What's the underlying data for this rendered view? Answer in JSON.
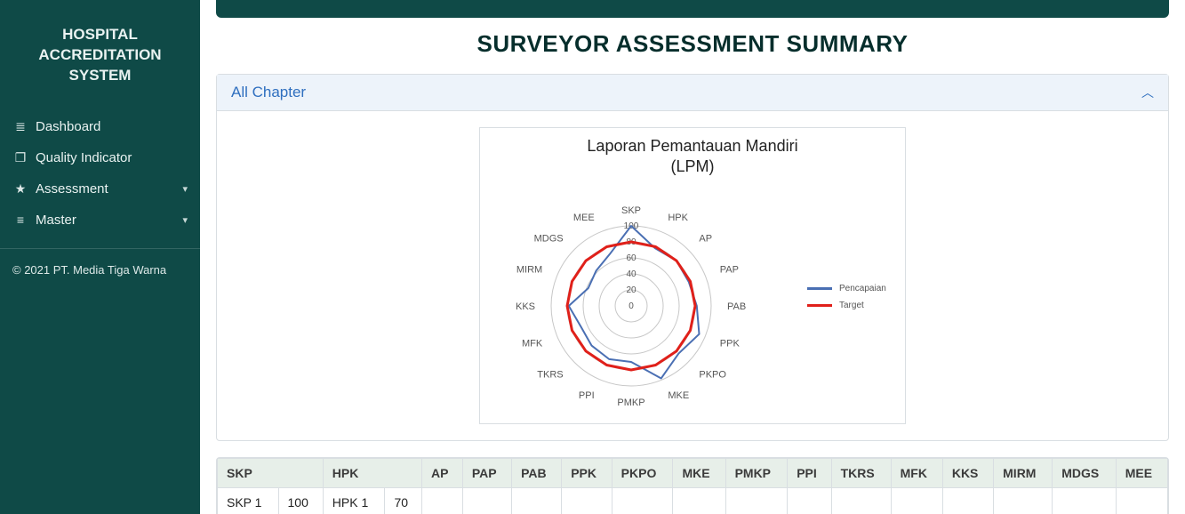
{
  "brand": {
    "line1": "HOSPITAL",
    "line2": "ACCREDITATION SYSTEM"
  },
  "sidebar": {
    "items": [
      {
        "icon": "≣",
        "label": "Dashboard",
        "has_caret": false
      },
      {
        "icon": "❐",
        "label": "Quality Indicator",
        "has_caret": false
      },
      {
        "icon": "★",
        "label": "Assessment",
        "has_caret": true
      },
      {
        "icon": "≡",
        "label": "Master",
        "has_caret": true
      }
    ],
    "copyright": "© 2021 PT. Media Tiga Warna"
  },
  "page": {
    "title": "SURVEYOR ASSESSMENT SUMMARY"
  },
  "panel": {
    "title": "All Chapter"
  },
  "chart": {
    "type": "radar",
    "title": "Laporan Pemantauan Mandiri",
    "subtitle": "(LPM)",
    "axes": [
      "SKP",
      "HPK",
      "AP",
      "PAP",
      "PAB",
      "PPK",
      "PKPO",
      "MKE",
      "PMKP",
      "PPI",
      "TKRS",
      "MFK",
      "KKS",
      "MIRM",
      "MDGS",
      "MEE"
    ],
    "rings": [
      0,
      20,
      40,
      60,
      80,
      100
    ],
    "max": 100,
    "series": [
      {
        "name": "Pencapaian",
        "color": "#4a6fb3",
        "width": 2,
        "values": [
          100,
          78,
          80,
          78,
          82,
          92,
          84,
          98,
          70,
          72,
          70,
          68,
          78,
          58,
          62,
          70
        ]
      },
      {
        "name": "Target",
        "color": "#e0201a",
        "width": 3,
        "values": [
          80,
          80,
          80,
          80,
          80,
          80,
          80,
          80,
          80,
          80,
          80,
          80,
          80,
          80,
          80,
          80
        ]
      }
    ],
    "ring_color": "#c7c7c7",
    "ring_width": 1,
    "axis_label_fontsize": 11,
    "ring_label_fontsize": 10,
    "label_color": "#555",
    "background_color": "#ffffff",
    "legend_colors": [
      "#4a6fb3",
      "#e0201a"
    ]
  },
  "table": {
    "columns": [
      "SKP",
      "HPK",
      "AP",
      "PAP",
      "PAB",
      "PPK",
      "PKPO",
      "MKE",
      "PMKP",
      "PPI",
      "TKRS",
      "MFK",
      "KKS",
      "MIRM",
      "MDGS",
      "MEE"
    ],
    "first_col_spans": {
      "SKP": 2,
      "HPK": 2
    },
    "rows": [
      {
        "cells": [
          "SKP 1",
          "100",
          "HPK 1",
          "70",
          "",
          "",
          "",
          "",
          "",
          "",
          "",
          "",
          "",
          "",
          "",
          "",
          "",
          ""
        ]
      }
    ]
  }
}
